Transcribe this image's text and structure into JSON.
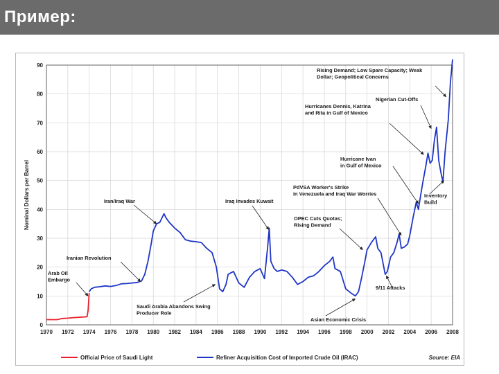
{
  "slide": {
    "title": "Пример:"
  },
  "chart_data": {
    "type": "line",
    "ylabel": "Nominal Dollars per Barrel",
    "xlim": [
      1970,
      2008
    ],
    "ylim": [
      0,
      90
    ],
    "yticks": [
      0,
      10,
      20,
      30,
      40,
      50,
      60,
      70,
      80,
      90
    ],
    "xticks": [
      1970,
      1972,
      1974,
      1976,
      1978,
      1980,
      1982,
      1984,
      1986,
      1988,
      1990,
      1992,
      1994,
      1996,
      1998,
      2000,
      2002,
      2004,
      2006,
      2008
    ],
    "grid": true,
    "source": "Source: EIA",
    "series": [
      {
        "name": "Official Price of Saudi Light",
        "color": "#e8202a",
        "x": [
          1970,
          1971,
          1971.5,
          1972,
          1972.5,
          1973,
          1973.8,
          1973.9,
          1974.0
        ],
        "y": [
          1.8,
          1.8,
          2.2,
          2.3,
          2.5,
          2.6,
          2.8,
          5.0,
          11.0
        ]
      },
      {
        "name": "Refiner Acquisition Cost of Imported Crude Oil (IRAC)",
        "color": "#1f35c4",
        "x": [
          1974.0,
          1974.2,
          1974.5,
          1975,
          1975.5,
          1976,
          1976.5,
          1977,
          1977.5,
          1978,
          1978.5,
          1978.9,
          1979.2,
          1979.5,
          1979.8,
          1980,
          1980.3,
          1980.6,
          1981,
          1981.2,
          1981.5,
          1982,
          1982.5,
          1983,
          1983.5,
          1984,
          1984.5,
          1985,
          1985.5,
          1985.9,
          1986.2,
          1986.5,
          1986.8,
          1987,
          1987.5,
          1988,
          1988.5,
          1989,
          1989.5,
          1990,
          1990.4,
          1990.7,
          1990.85,
          1991,
          1991.3,
          1991.6,
          1992,
          1992.5,
          1993,
          1993.5,
          1994,
          1994.5,
          1995,
          1995.5,
          1996,
          1996.5,
          1996.8,
          1997,
          1997.5,
          1998,
          1998.5,
          1998.9,
          1999.2,
          1999.5,
          1999.8,
          2000,
          2000.4,
          2000.8,
          2001,
          2001.3,
          2001.7,
          2001.9,
          2002.2,
          2002.5,
          2002.8,
          2003.0,
          2003.2,
          2003.5,
          2003.8,
          2004.0,
          2004.3,
          2004.6,
          2004.8,
          2005.0,
          2005.2,
          2005.5,
          2005.7,
          2005.9,
          2006.1,
          2006.3,
          2006.5,
          2006.7,
          2006.9,
          2007.1,
          2007.3,
          2007.6,
          2007.8,
          2008.0
        ],
        "y": [
          11.5,
          12.5,
          13.0,
          13.2,
          13.5,
          13.3,
          13.6,
          14.2,
          14.3,
          14.5,
          14.7,
          15.2,
          17.5,
          22.0,
          28.0,
          32.5,
          35.0,
          35.5,
          38.5,
          37.0,
          35.5,
          33.5,
          32.0,
          29.5,
          29.0,
          28.8,
          28.5,
          26.5,
          25.0,
          20.0,
          12.5,
          11.5,
          14.0,
          17.5,
          18.5,
          14.5,
          13.0,
          16.5,
          18.5,
          19.5,
          16.0,
          27.0,
          33.5,
          22.0,
          19.5,
          18.5,
          19.0,
          18.5,
          16.5,
          14.0,
          15.0,
          16.5,
          17.0,
          18.5,
          20.5,
          22.0,
          23.5,
          19.5,
          18.5,
          12.5,
          11.0,
          10.0,
          11.5,
          16.5,
          22.0,
          26.0,
          28.5,
          30.5,
          26.5,
          25.0,
          17.5,
          18.5,
          23.5,
          25.0,
          28.5,
          31.5,
          26.5,
          27.0,
          28.0,
          31.0,
          37.0,
          42.5,
          40.0,
          44.5,
          49.0,
          55.0,
          59.5,
          56.0,
          57.0,
          64.0,
          68.5,
          57.0,
          53.0,
          49.5,
          60.0,
          71.0,
          84.0,
          92.0
        ]
      }
    ],
    "annotations": [
      {
        "text": [
          "Rising Demand; Low Spare Capacity; Weak",
          "Dollar; Geopolitical Concerns"
        ],
        "x": 2007.4,
        "y": 79
      },
      {
        "text": [
          "Nigerian Cut-Offs"
        ],
        "x": 2006.0,
        "y": 68
      },
      {
        "text": [
          "Hurricanes Dennis, Katrina",
          "and Rita in Gulf of Mexico"
        ],
        "x": 2005.3,
        "y": 59
      },
      {
        "text": [
          "Hurricane Ivan",
          "in Gulf of Mexico"
        ],
        "x": 2004.8,
        "y": 42
      },
      {
        "text": [
          "PdVSA Worker's Strike",
          "in Venezuela and Iraq War Worries"
        ],
        "x": 2003.2,
        "y": 31
      },
      {
        "text": [
          "Inventory",
          "Build"
        ],
        "x": 2007.2,
        "y": 50
      },
      {
        "text": [
          "Iran/Iraq War"
        ],
        "x": 1980.3,
        "y": 35
      },
      {
        "text": [
          "Iraq Invades Kuwait"
        ],
        "x": 1990.8,
        "y": 33
      },
      {
        "text": [
          "OPEC Cuts Quotas;",
          "Rising Demand"
        ],
        "x": 1999.6,
        "y": 26
      },
      {
        "text": [
          "Iranian Revolution"
        ],
        "x": 1978.8,
        "y": 15
      },
      {
        "text": [
          "Arab Oil",
          "Embargo"
        ],
        "x": 1973.9,
        "y": 10
      },
      {
        "text": [
          "9/11 Attacks"
        ],
        "x": 2001.8,
        "y": 17
      },
      {
        "text": [
          "Saudi Arabia Abandons Swing",
          "Producer Role"
        ],
        "x": 1985.8,
        "y": 14
      },
      {
        "text": [
          "Asian Economic Crisis"
        ],
        "x": 1998.9,
        "y": 9
      }
    ]
  }
}
